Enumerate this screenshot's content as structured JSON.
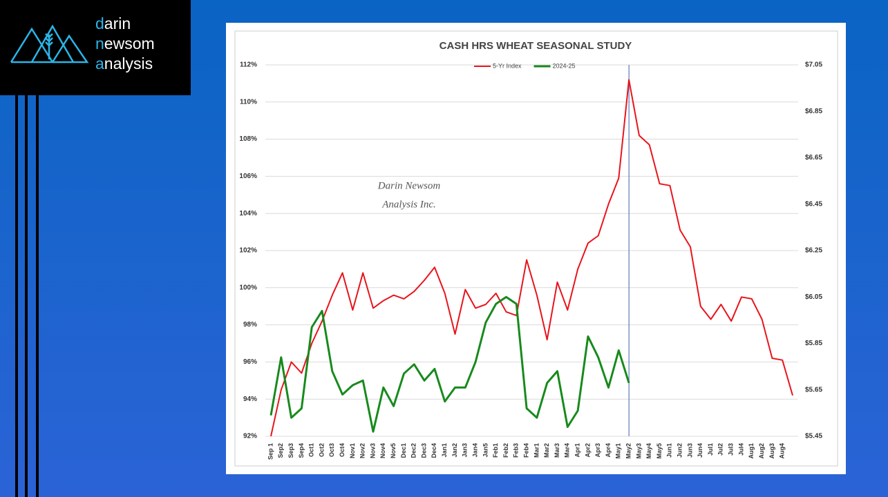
{
  "logo": [
    "darin",
    "newsom",
    "analysis"
  ],
  "chart_data": {
    "type": "line",
    "title": "CASH HRS WHEAT SEASONAL STUDY",
    "annotations": [
      "Darin Newsom",
      "Analysis Inc."
    ],
    "categories": [
      "Sep 1",
      "Sep2",
      "Sep3",
      "Sep4",
      "Oct1",
      "Oct2",
      "Oct3",
      "Oct4",
      "Nov1",
      "Nov2",
      "Nov3",
      "Nov4",
      "Nov5",
      "Dec1",
      "Dec2",
      "Dec3",
      "Dec4",
      "Jan1",
      "Jan2",
      "Jan3",
      "Jan4",
      "Jan5",
      "Feb1",
      "Feb2",
      "Feb3",
      "Feb4",
      "Mar1",
      "Mar2",
      "Mar3",
      "Mar4",
      "Apr1",
      "Apr2",
      "Apr3",
      "Apr4",
      "May1",
      "May2",
      "May3",
      "May4",
      "May5",
      "Jun1",
      "Jun2",
      "Jun3",
      "Jun4",
      "Jul1",
      "Jul2",
      "Jul3",
      "Jul4",
      "Aug1",
      "Aug2",
      "Aug3",
      "Aug4",
      null
    ],
    "series": [
      {
        "name": "5-Yr Index",
        "color": "#e8141b",
        "values": [
          92,
          94.5,
          96,
          95.4,
          97,
          98.2,
          99.6,
          100.8,
          98.8,
          100.8,
          98.9,
          99.3,
          99.6,
          99.4,
          99.8,
          100.4,
          101.1,
          99.7,
          97.5,
          99.9,
          98.9,
          99.1,
          99.7,
          98.7,
          98.5,
          101.5,
          99.6,
          97.2,
          100.3,
          98.8,
          101,
          102.4,
          102.8,
          104.5,
          105.9,
          111.2,
          108.2,
          107.7,
          105.6,
          105.5,
          103.1,
          102.2,
          99,
          98.3,
          99.1,
          98.2,
          99.5,
          99.4,
          98.3,
          96.2,
          96.1,
          94.2
        ]
      },
      {
        "name": "2024-25",
        "color": "#178a1c",
        "axis": "y2",
        "values": [
          5.54,
          5.79,
          5.53,
          5.57,
          5.92,
          5.99,
          5.73,
          5.63,
          5.67,
          5.69,
          5.47,
          5.66,
          5.58,
          5.72,
          5.76,
          5.69,
          5.74,
          5.6,
          5.66,
          5.66,
          5.77,
          5.94,
          6.02,
          6.05,
          6.02,
          5.57,
          5.53,
          5.68,
          5.73,
          5.49,
          5.56,
          5.88,
          5.79,
          5.66,
          5.82,
          5.68,
          null,
          null,
          null,
          null,
          null,
          null,
          null,
          null,
          null,
          null,
          null,
          null,
          null,
          null,
          null,
          null
        ]
      }
    ],
    "ylim": [
      92,
      112
    ],
    "yticks": [
      {
        "value": 92,
        "label": "92%"
      },
      {
        "value": 94,
        "label": "94%"
      },
      {
        "value": 96,
        "label": "96%"
      },
      {
        "value": 98,
        "label": "98%"
      },
      {
        "value": 100,
        "label": "100%"
      },
      {
        "value": 102,
        "label": "102%"
      },
      {
        "value": 104,
        "label": "104%"
      },
      {
        "value": 106,
        "label": "106%"
      },
      {
        "value": 108,
        "label": "108%"
      },
      {
        "value": 110,
        "label": "110%"
      },
      {
        "value": 112,
        "label": "112%"
      }
    ],
    "y2lim": [
      5.45,
      7.05
    ],
    "y2ticks": [
      {
        "value": 5.45,
        "label": "$5.45"
      },
      {
        "value": 5.65,
        "label": "$5.65"
      },
      {
        "value": 5.85,
        "label": "$5.85"
      },
      {
        "value": 6.05,
        "label": "$6.05"
      },
      {
        "value": 6.25,
        "label": "$6.25"
      },
      {
        "value": 6.45,
        "label": "$6.45"
      },
      {
        "value": 6.65,
        "label": "$6.65"
      },
      {
        "value": 6.85,
        "label": "$6.85"
      },
      {
        "value": 7.05,
        "label": "$7.05"
      }
    ],
    "grid": true,
    "legend": "top"
  }
}
